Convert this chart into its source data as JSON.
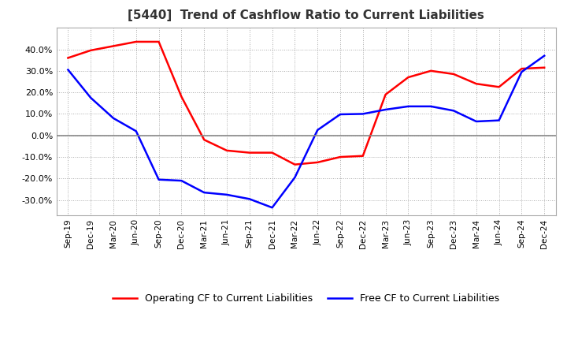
{
  "title": "[5440]  Trend of Cashflow Ratio to Current Liabilities",
  "x_labels": [
    "Sep-19",
    "Dec-19",
    "Mar-20",
    "Jun-20",
    "Sep-20",
    "Dec-20",
    "Mar-21",
    "Jun-21",
    "Sep-21",
    "Dec-21",
    "Mar-22",
    "Jun-22",
    "Sep-22",
    "Dec-22",
    "Mar-23",
    "Jun-23",
    "Sep-23",
    "Dec-23",
    "Mar-24",
    "Jun-24",
    "Sep-24",
    "Dec-24"
  ],
  "operating_cf": [
    0.36,
    0.395,
    0.415,
    0.435,
    0.435,
    0.18,
    -0.02,
    -0.07,
    -0.08,
    -0.08,
    -0.135,
    -0.125,
    -0.1,
    -0.095,
    0.19,
    0.27,
    0.3,
    0.285,
    0.24,
    0.225,
    0.31,
    0.315
  ],
  "free_cf": [
    0.305,
    0.175,
    0.08,
    0.02,
    -0.205,
    -0.21,
    -0.265,
    -0.275,
    -0.295,
    -0.335,
    -0.195,
    0.025,
    0.098,
    0.1,
    0.12,
    0.135,
    0.135,
    0.115,
    0.065,
    0.07,
    0.295,
    0.37
  ],
  "operating_color": "#ff0000",
  "free_color": "#0000ff",
  "ylim": [
    -0.37,
    0.5
  ],
  "yticks": [
    -0.3,
    -0.2,
    -0.1,
    0.0,
    0.1,
    0.2,
    0.3,
    0.4
  ],
  "legend_operating": "Operating CF to Current Liabilities",
  "legend_free": "Free CF to Current Liabilities",
  "background_color": "#ffffff",
  "plot_bg_color": "#ffffff",
  "grid_color": "#aaaaaa",
  "zero_line_color": "#888888"
}
